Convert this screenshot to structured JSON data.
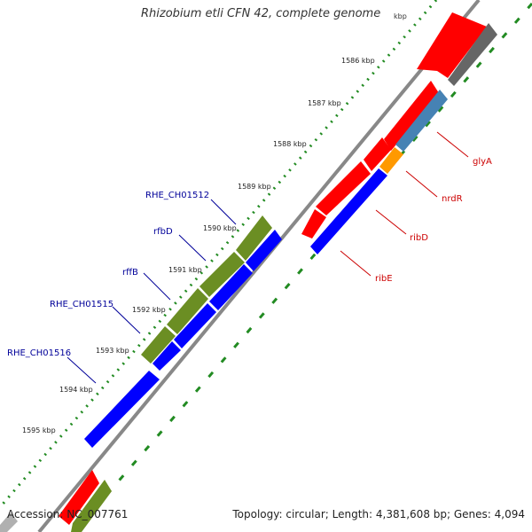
{
  "header": {
    "title": "Rhizobium etli CFN 42, complete genome",
    "unit": "kbp"
  },
  "footer": {
    "accession": "Accession: NC_007761",
    "summary": "Topology: circular; Length: 4,381,608 bp; Genes: 4,094"
  },
  "scale": {
    "ticks": [
      "1586 kbp",
      "1587 kbp",
      "1588 kbp",
      "1589 kbp",
      "1590 kbp",
      "1591 kbp",
      "1592 kbp",
      "1593 kbp",
      "1594 kbp",
      "1595 kbp"
    ]
  },
  "genes": {
    "right": [
      "glyA",
      "nrdR",
      "ribD",
      "ribE"
    ],
    "left": [
      "RHE_CH01512",
      "rfbD",
      "rffB",
      "RHE_CH01515",
      "RHE_CH01516"
    ]
  },
  "colors": {
    "forward_red": "#ff0000",
    "gray": "#666666",
    "steelblue": "#4682b4",
    "orange": "#ff9900",
    "blue": "#0000ff",
    "olive": "#6b8e23",
    "backbone": "#888888",
    "tick_green": "#228b22",
    "label_red": "#cc0000",
    "label_blue": "#000099"
  }
}
